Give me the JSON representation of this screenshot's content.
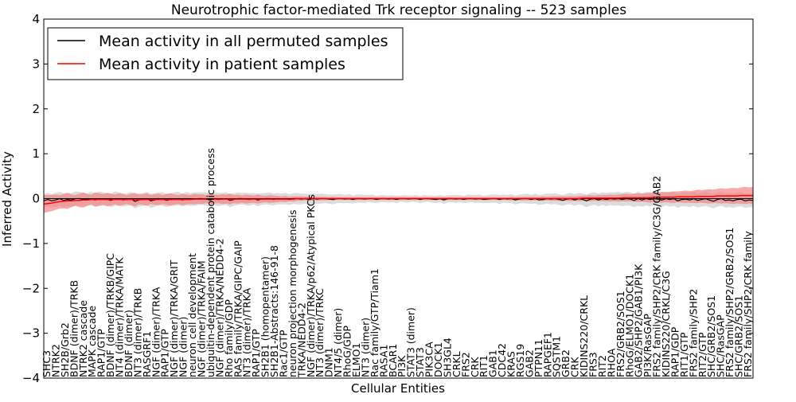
{
  "chart_data": {
    "type": "line",
    "title": "Neurotrophic factor-mediated Trk receptor signaling -- 523 samples",
    "xlabel": "Cellular Entities",
    "ylabel": "Inferred Activity",
    "ylim": [
      -4,
      4
    ],
    "yticks": [
      "4",
      "3",
      "2",
      "1",
      "0",
      "−1",
      "−2",
      "−3",
      "−4"
    ],
    "x_points": 180,
    "legend": {
      "position": "top-left",
      "entries": [
        {
          "name": "Mean activity in all permuted samples",
          "color": "#000000"
        },
        {
          "name": "Mean activity in patient samples",
          "color": "#ff0000"
        }
      ]
    },
    "series": [
      {
        "name": "Mean activity in all permuted samples",
        "color": "#000000",
        "band_color": "#c0c0c0",
        "values": [
          -0.05,
          -0.02,
          -0.05,
          -0.03,
          0.0,
          -0.04,
          -0.02,
          -0.03,
          0.0,
          0.0,
          -0.02,
          -0.02,
          0.0,
          -0.03,
          0.0,
          -0.01,
          -0.02,
          -0.04,
          0.0,
          -0.01,
          -0.03,
          -0.02,
          0.0,
          -0.06,
          -0.03,
          -0.02,
          0.0,
          -0.05,
          -0.03,
          0.0,
          -0.01,
          -0.04,
          -0.02,
          -0.01,
          0.0,
          -0.03,
          0.0,
          -0.02,
          -0.01,
          0.0,
          0.0,
          -0.01,
          -0.03,
          0.0,
          -0.02,
          -0.01,
          0.0,
          -0.04,
          -0.02,
          0.0,
          0.0,
          -0.01,
          -0.02,
          0.0,
          -0.03,
          -0.01,
          0.0,
          0.0,
          -0.02,
          0.0,
          -0.01,
          0.0,
          -0.02,
          0.0,
          0.0,
          -0.01,
          0.0,
          -0.02,
          0.0,
          -0.01,
          0.0,
          0.0,
          -0.01,
          -0.02,
          0.0,
          0.0,
          -0.01,
          0.0,
          -0.02,
          0.0,
          0.0,
          -0.01,
          0.0,
          0.0,
          -0.02,
          0.0,
          0.0,
          -0.01,
          0.0,
          -0.02,
          0.0,
          0.0,
          -0.01,
          0.0,
          0.0,
          -0.02,
          0.0,
          0.0,
          -0.01,
          -0.02,
          0.0,
          -0.03,
          0.0,
          0.0,
          -0.01,
          0.0,
          -0.02,
          0.0,
          0.0,
          -0.01,
          0.0,
          -0.02,
          -0.01,
          0.0,
          0.0,
          -0.02,
          0.0,
          -0.01,
          0.0,
          -0.03,
          -0.01,
          0.0,
          0.0,
          -0.02,
          0.0,
          -0.03,
          -0.02,
          0.0,
          -0.01,
          0.0,
          -0.02,
          -0.04,
          -0.01,
          0.0,
          -0.03,
          0.0,
          -0.02,
          -0.05,
          -0.01,
          0.0,
          -0.03,
          0.0,
          -0.02,
          0.0,
          -0.01,
          0.0,
          -0.02,
          0.0,
          -0.01,
          -0.04,
          0.0,
          -0.03,
          0.0,
          -0.02,
          0.0,
          -0.01,
          -0.03,
          0.0,
          -0.02,
          0.0,
          -0.05,
          -0.02,
          -0.01,
          -0.03,
          0.0,
          -0.04,
          -0.02,
          0.0,
          -0.03,
          -0.06,
          -0.02,
          0.0,
          -0.04,
          -0.03,
          -0.05,
          -0.02,
          -0.01,
          -0.05,
          -0.03,
          -0.04
        ],
        "band_half_width": [
          0.14,
          0.15,
          0.15,
          0.16,
          0.15,
          0.16,
          0.15,
          0.15,
          0.16,
          0.15,
          0.15,
          0.14,
          0.15,
          0.15,
          0.16,
          0.15,
          0.14,
          0.15,
          0.16,
          0.15,
          0.15,
          0.14,
          0.15,
          0.16,
          0.15,
          0.14,
          0.15,
          0.16,
          0.15,
          0.14,
          0.15,
          0.15,
          0.14,
          0.15,
          0.15,
          0.14,
          0.15,
          0.14,
          0.15,
          0.14,
          0.14,
          0.15,
          0.14,
          0.14,
          0.15,
          0.14,
          0.14,
          0.15,
          0.14,
          0.14,
          0.13,
          0.14,
          0.14,
          0.13,
          0.14,
          0.13,
          0.13,
          0.14,
          0.13,
          0.13,
          0.12,
          0.13,
          0.12,
          0.12,
          0.13,
          0.12,
          0.11,
          0.12,
          0.11,
          0.11,
          0.11,
          0.1,
          0.1,
          0.11,
          0.1,
          0.1,
          0.09,
          0.1,
          0.09,
          0.09,
          0.09,
          0.09,
          0.08,
          0.09,
          0.08,
          0.08,
          0.08,
          0.08,
          0.08,
          0.08,
          0.07,
          0.08,
          0.08,
          0.07,
          0.08,
          0.08,
          0.08,
          0.07,
          0.08,
          0.08,
          0.08,
          0.09,
          0.08,
          0.08,
          0.09,
          0.08,
          0.08,
          0.09,
          0.08,
          0.09,
          0.09,
          0.08,
          0.09,
          0.09,
          0.09,
          0.1,
          0.09,
          0.09,
          0.1,
          0.1,
          0.1,
          0.1,
          0.11,
          0.1,
          0.11,
          0.11,
          0.11,
          0.11,
          0.12,
          0.12,
          0.12,
          0.12,
          0.12,
          0.13,
          0.13,
          0.13,
          0.13,
          0.14,
          0.14,
          0.14,
          0.14,
          0.14,
          0.15,
          0.14,
          0.15,
          0.15,
          0.15,
          0.15,
          0.15,
          0.15,
          0.16,
          0.15,
          0.15,
          0.16,
          0.15,
          0.16,
          0.16,
          0.15,
          0.16,
          0.16,
          0.16,
          0.15,
          0.16,
          0.16,
          0.16,
          0.16,
          0.16,
          0.16,
          0.16,
          0.16,
          0.16,
          0.16,
          0.16,
          0.16,
          0.16,
          0.16,
          0.16,
          0.16,
          0.16,
          0.16
        ]
      },
      {
        "name": "Mean activity in patient samples",
        "color": "#ff0000",
        "band_color": "#f47c7c",
        "values": [
          -0.12,
          -0.11,
          -0.1,
          -0.08,
          -0.07,
          -0.06,
          -0.05,
          -0.05,
          -0.04,
          -0.04,
          -0.03,
          -0.03,
          -0.02,
          -0.02,
          -0.02,
          -0.02,
          -0.02,
          -0.02,
          -0.02,
          -0.02,
          -0.02,
          -0.02,
          -0.02,
          -0.02,
          -0.02,
          -0.02,
          -0.02,
          -0.02,
          -0.02,
          -0.02,
          -0.02,
          -0.02,
          -0.02,
          -0.02,
          -0.02,
          -0.02,
          -0.02,
          -0.02,
          -0.01,
          -0.01,
          -0.01,
          -0.01,
          -0.01,
          -0.01,
          -0.01,
          -0.01,
          -0.01,
          -0.01,
          -0.01,
          -0.01,
          -0.01,
          -0.01,
          -0.01,
          -0.01,
          -0.01,
          -0.01,
          -0.01,
          -0.01,
          -0.01,
          -0.01,
          -0.01,
          -0.01,
          -0.01,
          -0.01,
          0.0,
          0.0,
          0.0,
          0.0,
          0.0,
          0.0,
          0.0,
          0.0,
          0.0,
          0.0,
          0.0,
          0.0,
          0.0,
          0.0,
          0.0,
          0.0,
          0.0,
          0.0,
          0.0,
          0.0,
          0.0,
          0.0,
          0.0,
          0.0,
          0.0,
          0.0,
          0.0,
          0.0,
          0.0,
          0.0,
          0.0,
          0.0,
          0.0,
          0.0,
          0.0,
          0.0,
          0.0,
          0.0,
          0.0,
          0.0,
          0.0,
          0.0,
          0.0,
          0.0,
          0.0,
          0.0,
          0.0,
          0.0,
          0.0,
          0.0,
          0.0,
          0.0,
          0.0,
          0.0,
          0.0,
          0.0,
          0.0,
          0.0,
          0.0,
          0.0,
          0.0,
          0.0,
          0.0,
          0.0,
          0.0,
          0.0,
          0.0,
          0.0,
          0.0,
          0.0,
          0.0,
          0.0,
          0.01,
          0.01,
          0.01,
          0.01,
          0.01,
          0.01,
          0.01,
          0.01,
          0.01,
          0.01,
          0.02,
          0.02,
          0.02,
          0.02,
          0.02,
          0.02,
          0.02,
          0.02,
          0.03,
          0.03,
          0.03,
          0.03,
          0.03,
          0.03,
          0.04,
          0.04,
          0.04,
          0.04,
          0.04,
          0.05,
          0.05,
          0.05,
          0.05,
          0.05,
          0.06,
          0.06,
          0.06,
          0.06,
          0.06,
          0.06,
          0.07,
          0.07,
          0.07,
          0.07
        ],
        "band_half_width": [
          0.2,
          0.19,
          0.18,
          0.17,
          0.15,
          0.16,
          0.18,
          0.14,
          0.12,
          0.15,
          0.17,
          0.13,
          0.11,
          0.16,
          0.14,
          0.12,
          0.15,
          0.13,
          0.11,
          0.14,
          0.12,
          0.1,
          0.13,
          0.15,
          0.11,
          0.12,
          0.14,
          0.1,
          0.12,
          0.13,
          0.1,
          0.12,
          0.14,
          0.11,
          0.1,
          0.13,
          0.11,
          0.1,
          0.12,
          0.1,
          0.11,
          0.09,
          0.12,
          0.1,
          0.09,
          0.11,
          0.1,
          0.12,
          0.09,
          0.1,
          0.08,
          0.1,
          0.09,
          0.08,
          0.1,
          0.08,
          0.07,
          0.09,
          0.08,
          0.07,
          0.06,
          0.07,
          0.05,
          0.06,
          0.05,
          0.05,
          0.04,
          0.05,
          0.04,
          0.04,
          0.04,
          0.04,
          0.03,
          0.04,
          0.03,
          0.03,
          0.03,
          0.03,
          0.03,
          0.03,
          0.03,
          0.03,
          0.03,
          0.03,
          0.03,
          0.03,
          0.03,
          0.03,
          0.03,
          0.03,
          0.03,
          0.03,
          0.03,
          0.03,
          0.03,
          0.03,
          0.03,
          0.03,
          0.03,
          0.03,
          0.03,
          0.03,
          0.03,
          0.03,
          0.03,
          0.03,
          0.03,
          0.03,
          0.03,
          0.03,
          0.03,
          0.03,
          0.03,
          0.03,
          0.03,
          0.03,
          0.03,
          0.03,
          0.04,
          0.03,
          0.04,
          0.04,
          0.04,
          0.04,
          0.04,
          0.04,
          0.05,
          0.04,
          0.05,
          0.05,
          0.05,
          0.05,
          0.05,
          0.06,
          0.05,
          0.06,
          0.06,
          0.06,
          0.07,
          0.06,
          0.07,
          0.07,
          0.07,
          0.08,
          0.07,
          0.08,
          0.08,
          0.09,
          0.08,
          0.09,
          0.1,
          0.09,
          0.1,
          0.11,
          0.1,
          0.11,
          0.12,
          0.11,
          0.12,
          0.13,
          0.12,
          0.13,
          0.14,
          0.13,
          0.14,
          0.15,
          0.14,
          0.15,
          0.16,
          0.15,
          0.16,
          0.17,
          0.16,
          0.17,
          0.18,
          0.17,
          0.18,
          0.19,
          0.18,
          0.19
        ]
      }
    ],
    "entity_labels": [
      "SHC3",
      "NTRK2",
      "SH2B/Grb2",
      "BDNF (dimer)/TRKB",
      "NTRK2 cascade",
      "MAPK cascade",
      "RAP1/GTP",
      "BDNF (dimer)/TRKB/GIPC",
      "NT4 (dimer)/TRKA/MATK",
      "BDNF (dimer)",
      "NT3 (dimer)/TRKB",
      "RASGRF1",
      "NGF (dimer)/TRKA",
      "RAP1/GTP",
      "NGF (dimer)/TRKA/GRIT",
      "NGF (dimer)",
      "neuron cell development",
      "NGF (dimer)/TRKA/FAIM",
      "ubiquitin-dependent protein catabolic process",
      "NGF (dimer)/TRKA/NEDD4-2",
      "Rho family/GDP",
      "RAS family/TRKA/GIPC/GAIP",
      "NT3 (dimer)/TRKA",
      "RAP1/GTP",
      "SH2B1 (homopentamer)",
      "SH2B1-Abstracts:146-91-8",
      "Rac1/GTP",
      "neuron projection morphogenesis",
      "TRKA/NEDD4-2",
      "NGF (dimer)/TRKA/p62/Atypical PKCs",
      "NT3 (dimer)/TRKC",
      "DNM1",
      "NT4/5 (dimer)",
      "RhoG/GDP",
      "ELMO1",
      "NT3 (dimer)",
      "Rac family/GTP/Tiam1",
      "RASA1",
      "BCAR1",
      "PI3K",
      "STAT3 (dimer)",
      "STAT3",
      "PIK3CA",
      "DOCK1",
      "SH3GL4",
      "CRKL",
      "FRS2",
      "CRK",
      "RIT1",
      "GAB1",
      "CDC42",
      "KRAS",
      "RGS19",
      "GAB2",
      "PTPN11",
      "RAPGEF1",
      "SQSTM1",
      "GRB2",
      "CRK",
      "KIDINS220/CRKL",
      "FRS3",
      "RIT2",
      "RHOA",
      "FRS2/GRB2/SOS1",
      "RhoG/ELMO1/DOCK1",
      "GAB2/SHP2/GAB1/PI3K",
      "PI3K/RasGAP",
      "FRS2 family/SHP2/CRK family/C3G/GAB2",
      "KIDINS220/CRKL/C3G",
      "RAP1/GDP",
      "RIT1/GTP",
      "FRS2 family/SHP2",
      "RIT2/GTP",
      "SHC/GRB2/SOS1",
      "SHC/RasGAP",
      "FRS2 family/SHP2/GRB2/SOS1",
      "SHC/GRB2/SOS1",
      "FRS2 family/SHP2/CRK family"
    ]
  }
}
